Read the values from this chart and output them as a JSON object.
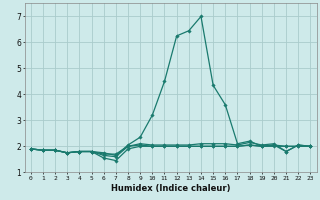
{
  "xlabel": "Humidex (Indice chaleur)",
  "xlim": [
    -0.5,
    23.5
  ],
  "ylim": [
    1,
    7.5
  ],
  "yticks": [
    1,
    2,
    3,
    4,
    5,
    6,
    7
  ],
  "xticks": [
    0,
    1,
    2,
    3,
    4,
    5,
    6,
    7,
    8,
    9,
    10,
    11,
    12,
    13,
    14,
    15,
    16,
    17,
    18,
    19,
    20,
    21,
    22,
    23
  ],
  "bg_color": "#ceeaea",
  "grid_color": "#aacccc",
  "line_color": "#1a7a6e",
  "lines": [
    [
      1.9,
      1.85,
      1.85,
      1.75,
      1.8,
      1.8,
      1.75,
      1.65,
      2.05,
      2.35,
      3.2,
      4.5,
      6.25,
      6.45,
      7.0,
      4.35,
      3.6,
      2.1,
      2.2,
      2.0,
      2.05,
      1.8,
      2.05,
      2.0
    ],
    [
      1.9,
      1.85,
      1.85,
      1.75,
      1.8,
      1.8,
      1.55,
      1.45,
      1.9,
      2.0,
      2.0,
      2.0,
      2.0,
      2.0,
      2.0,
      2.0,
      2.0,
      2.0,
      2.05,
      2.0,
      2.0,
      2.0,
      2.0,
      2.0
    ],
    [
      1.9,
      1.85,
      1.85,
      1.75,
      1.8,
      1.8,
      1.65,
      1.6,
      2.0,
      2.05,
      2.0,
      2.0,
      2.0,
      2.0,
      2.0,
      2.0,
      2.0,
      2.0,
      2.05,
      2.0,
      2.05,
      2.0,
      2.0,
      2.0
    ],
    [
      1.9,
      1.85,
      1.85,
      1.75,
      1.8,
      1.8,
      1.7,
      1.7,
      2.0,
      2.1,
      2.05,
      2.05,
      2.05,
      2.05,
      2.1,
      2.1,
      2.1,
      2.05,
      2.15,
      2.05,
      2.1,
      1.8,
      2.05,
      2.0
    ]
  ]
}
